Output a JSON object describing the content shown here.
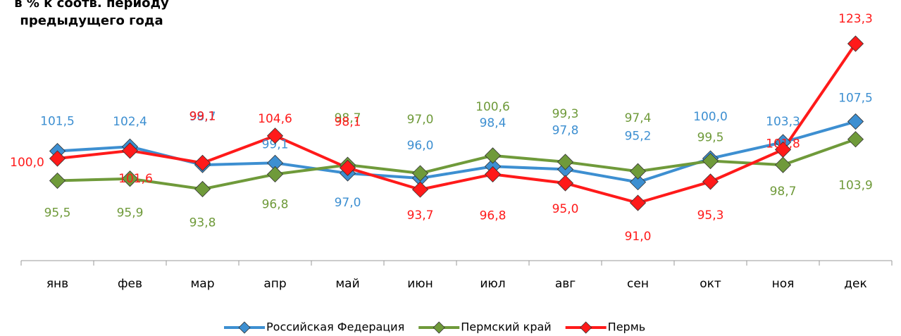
{
  "chart_data": {
    "type": "line",
    "title": [
      "в % к соотв. периоду",
      "предыдущего года"
    ],
    "categories": [
      "янв",
      "фев",
      "мар",
      "апр",
      "май",
      "июн",
      "июл",
      "авг",
      "сен",
      "окт",
      "ноя",
      "дек"
    ],
    "series": [
      {
        "name": "Российская Федерация",
        "color": "#3d8fd1",
        "values": [
          101.5,
          102.4,
          98.7,
          99.1,
          97.0,
          96.0,
          98.4,
          97.8,
          95.2,
          100.0,
          103.3,
          107.5
        ],
        "value_labels": [
          "101,5",
          "102,4",
          "98,7",
          "99,1",
          "97,0",
          "96,0",
          "98,4",
          "97,8",
          "95,2",
          "100,0",
          "103,3",
          "107,5"
        ]
      },
      {
        "name": "Пермский край",
        "color": "#6f9a3a",
        "values": [
          95.5,
          95.9,
          93.8,
          96.8,
          98.7,
          97.0,
          100.6,
          99.3,
          97.4,
          99.5,
          98.7,
          103.9
        ],
        "value_labels": [
          "95,5",
          "95,9",
          "93,8",
          "96,8",
          "98,7",
          "97,0",
          "100,6",
          "99,3",
          "97,4",
          "99,5",
          "98,7",
          "103,9"
        ]
      },
      {
        "name": "Пермь",
        "color": "#ff1a1a",
        "values": [
          100.0,
          101.6,
          99.1,
          104.6,
          98.1,
          93.7,
          96.8,
          95.0,
          91.0,
          95.3,
          101.8,
          123.3
        ],
        "value_labels": [
          "100,0",
          "101,6",
          "99,1",
          "104,6",
          "98,1",
          "93,7",
          "96,8",
          "95,0",
          "91,0",
          "95,3",
          "101,8",
          "123,3"
        ]
      }
    ],
    "legend": "bottom"
  }
}
